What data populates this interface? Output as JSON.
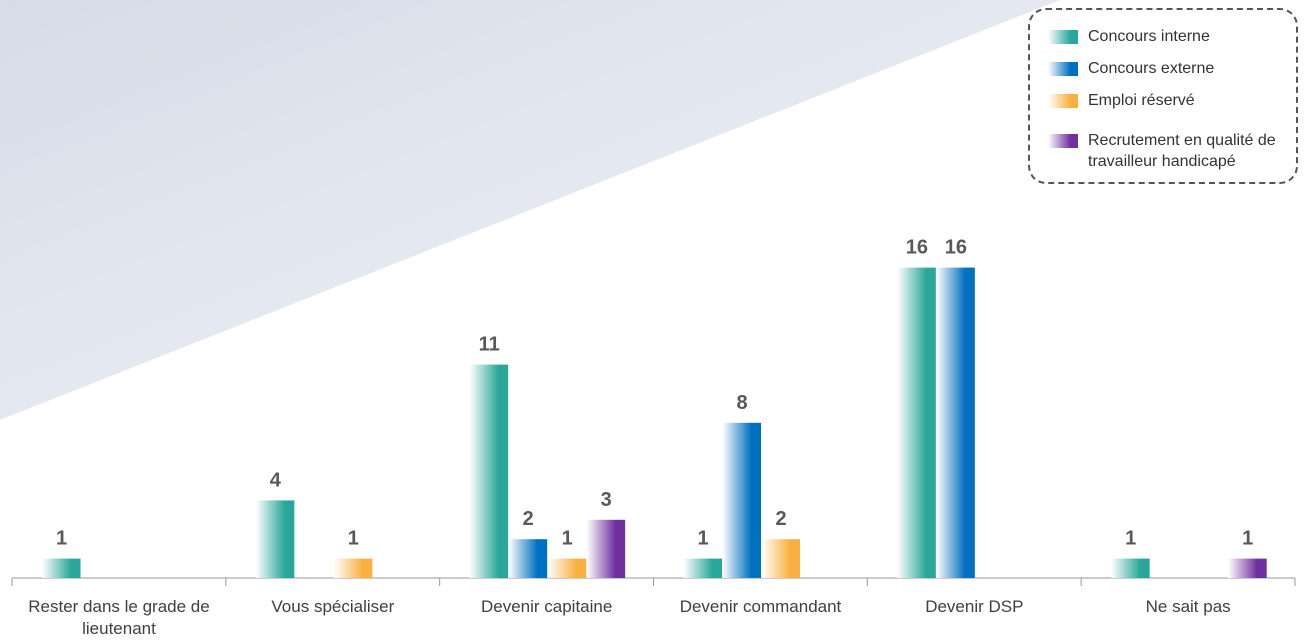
{
  "chart_data": {
    "type": "bar",
    "categories": [
      "Rester dans le grade de lieutenant",
      "Vous spécialiser",
      "Devenir capitaine",
      "Devenir commandant",
      "Devenir DSP",
      "Ne sait pas"
    ],
    "series": [
      {
        "name": "Concours interne",
        "color": "#2aa79a",
        "values": [
          1,
          4,
          11,
          1,
          16,
          1
        ]
      },
      {
        "name": "Concours externe",
        "color": "#0070c0",
        "values": [
          null,
          null,
          2,
          8,
          16,
          null
        ]
      },
      {
        "name": "Emploi réservé",
        "color": "#f9b040",
        "values": [
          null,
          1,
          1,
          2,
          null,
          null
        ]
      },
      {
        "name": "Recrutement en qualité de travailleur handicapé",
        "color": "#7030a0",
        "values": [
          null,
          null,
          3,
          null,
          null,
          1
        ]
      }
    ],
    "legend": "top-right"
  }
}
